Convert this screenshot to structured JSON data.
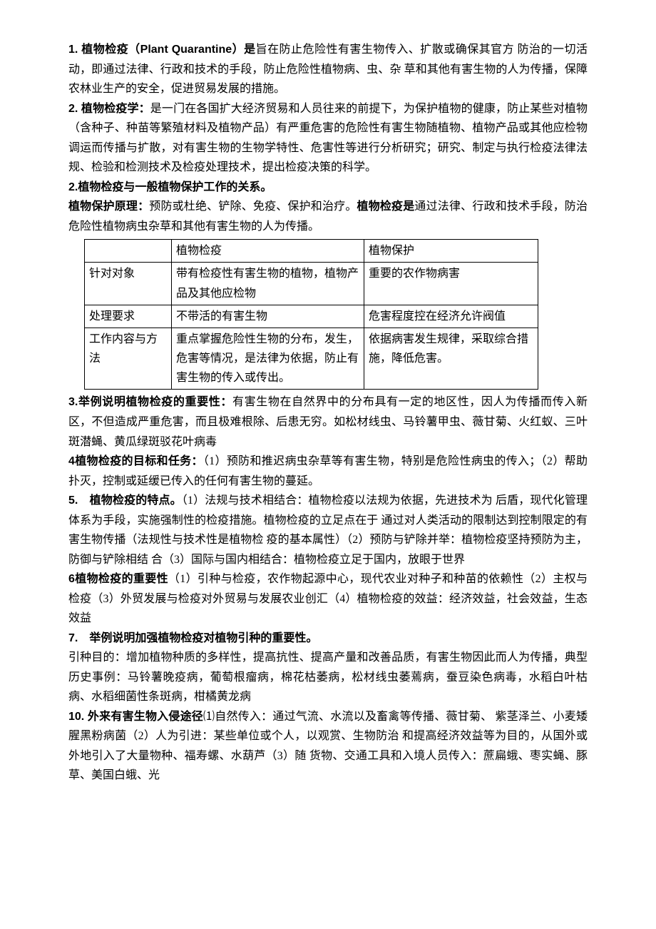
{
  "p1": {
    "lead": "1. 植物检疫（Plant Quarantine）是",
    "body": "旨在防止危险性有害生物传入、扩散或确保其官方 防治的一切活动，即通过法律、行政和技术的手段，防止危险性植物病、虫、杂 草和其他有害生物的人为传播，保障农林业生产的安全，促进贸易发展的措施。"
  },
  "p2": {
    "lead": "2. 植物检疫学：",
    "body": "是一门在各国扩大经济贸易和人员往来的前提下，为保护植物的健康，防止某些对植物（含种子、种苗等繁殖材料及植物产品）有严重危害的危险性有害生物随植物、植物产品或其他应检物调运而传播与扩散，对有害生物的生物学特性、危害性等进行分析研究；研究、制定与执行检疫法律法规、检验和检测技术及检疫处理技术，提出检疫决策的科学。"
  },
  "p3": {
    "head": "2.植物检疫与一般植物保护工作的关系。"
  },
  "p4": {
    "lead1": "植物保护原理：",
    "mid": "预防或杜绝、铲除、免疫、保护和治疗。",
    "lead2": "植物检疫是",
    "tail": "通过法律、行政和技术手段，防治危险性植物病虫杂草和其他有害生物的人为传播。"
  },
  "table": {
    "header": [
      "",
      "植物检疫",
      "植物保护"
    ],
    "rows": [
      [
        "针对对象",
        "带有检疫性有害生物的植物，植物产品及其他应检物",
        "重要的农作物病害"
      ],
      [
        "处理要求",
        "不带活的有害生物",
        "危害程度控在经济允许阀值"
      ],
      [
        "工作内容与方法",
        "重点掌握危险性生物的分布，发生，危害等情况，是法律为依据，防止有害生物的传入或传出。",
        "依据病害发生规律，采取综合措施，降低危害。"
      ]
    ]
  },
  "p5": {
    "lead": "3.举例说明植物检疫的重要性：",
    "body": "有害生物在自然界中的分布具有一定的地区性，因人为传播而传入新区，不但造成严重危害，而且极难根除、后患无穷。如松材线虫、马铃薯甲虫、薇甘菊、火红蚁、三叶斑潜蝇、黄瓜绿斑驳花叶病毒"
  },
  "p6": {
    "lead": "4植物检疫的目标和任务：",
    "body": "（1）预防和推迟病虫杂草等有害生物，特别是危险性病虫的传入；（2）帮助扑灭，控制或延缓已传入的任何有害生物的蔓延。"
  },
  "p7": {
    "lead": "5.　植物检疫的特点。",
    "body": "（1）法规与技术相结合：植物检疫以法规为依据，先进技术为 后盾，现代化管理体系为手段，实施强制性的检疫措施。植物检疫的立足点在于 通过对人类活动的限制达到控制限定的有害生物传播（法规性与技术性是植物检 疫的基本属性）（2）预防与铲除并举：植物检疫坚持预防为主，防御与铲除相结 合（3）国际与国内相结合：植物检疫立足于国内，放眼于世界"
  },
  "p8": {
    "lead": "6植物检疫的重要性",
    "body": "（1）引种与检疫，农作物起源中心，现代农业对种子和种苗的依赖性（2）主权与检疫（3）外贸发展与检疫对外贸易与发展农业创汇（4）植物检疫的效益：经济效益，社会效益，生态效益"
  },
  "p9": {
    "head": "7.　举例说明加强植物检疫对植物引种的重要性。"
  },
  "p10": {
    "body": "引种目的：增加植物种质的多样性，提高抗性、提高产量和改善品质，有害生物因此而人为传播，典型历史事例：马铃薯晚疫病，葡萄根瘤病，棉花枯萎病，松材线虫萎蔫病，蚕豆染色病毒，水稻白叶枯病、水稻细菌性条斑病，柑橘黄龙病"
  },
  "p11": {
    "lead": "10. 外来有害生物入侵途径",
    "body": "⑴自然传入：通过气流、水流以及畜禽等传播、薇甘菊、 紫茎泽兰、小麦矮腥黑粉病菌（2）人为引进：某些单位或个人，以观赏、生物防治 和提高经济效益等为目的，从国外或外地引入了大量物种、福寿螺、水葫芦（3）随 货物、交通工具和入境人员传入：蔗扁蛾、枣实蝇、豚草、美国白蛾、光"
  }
}
